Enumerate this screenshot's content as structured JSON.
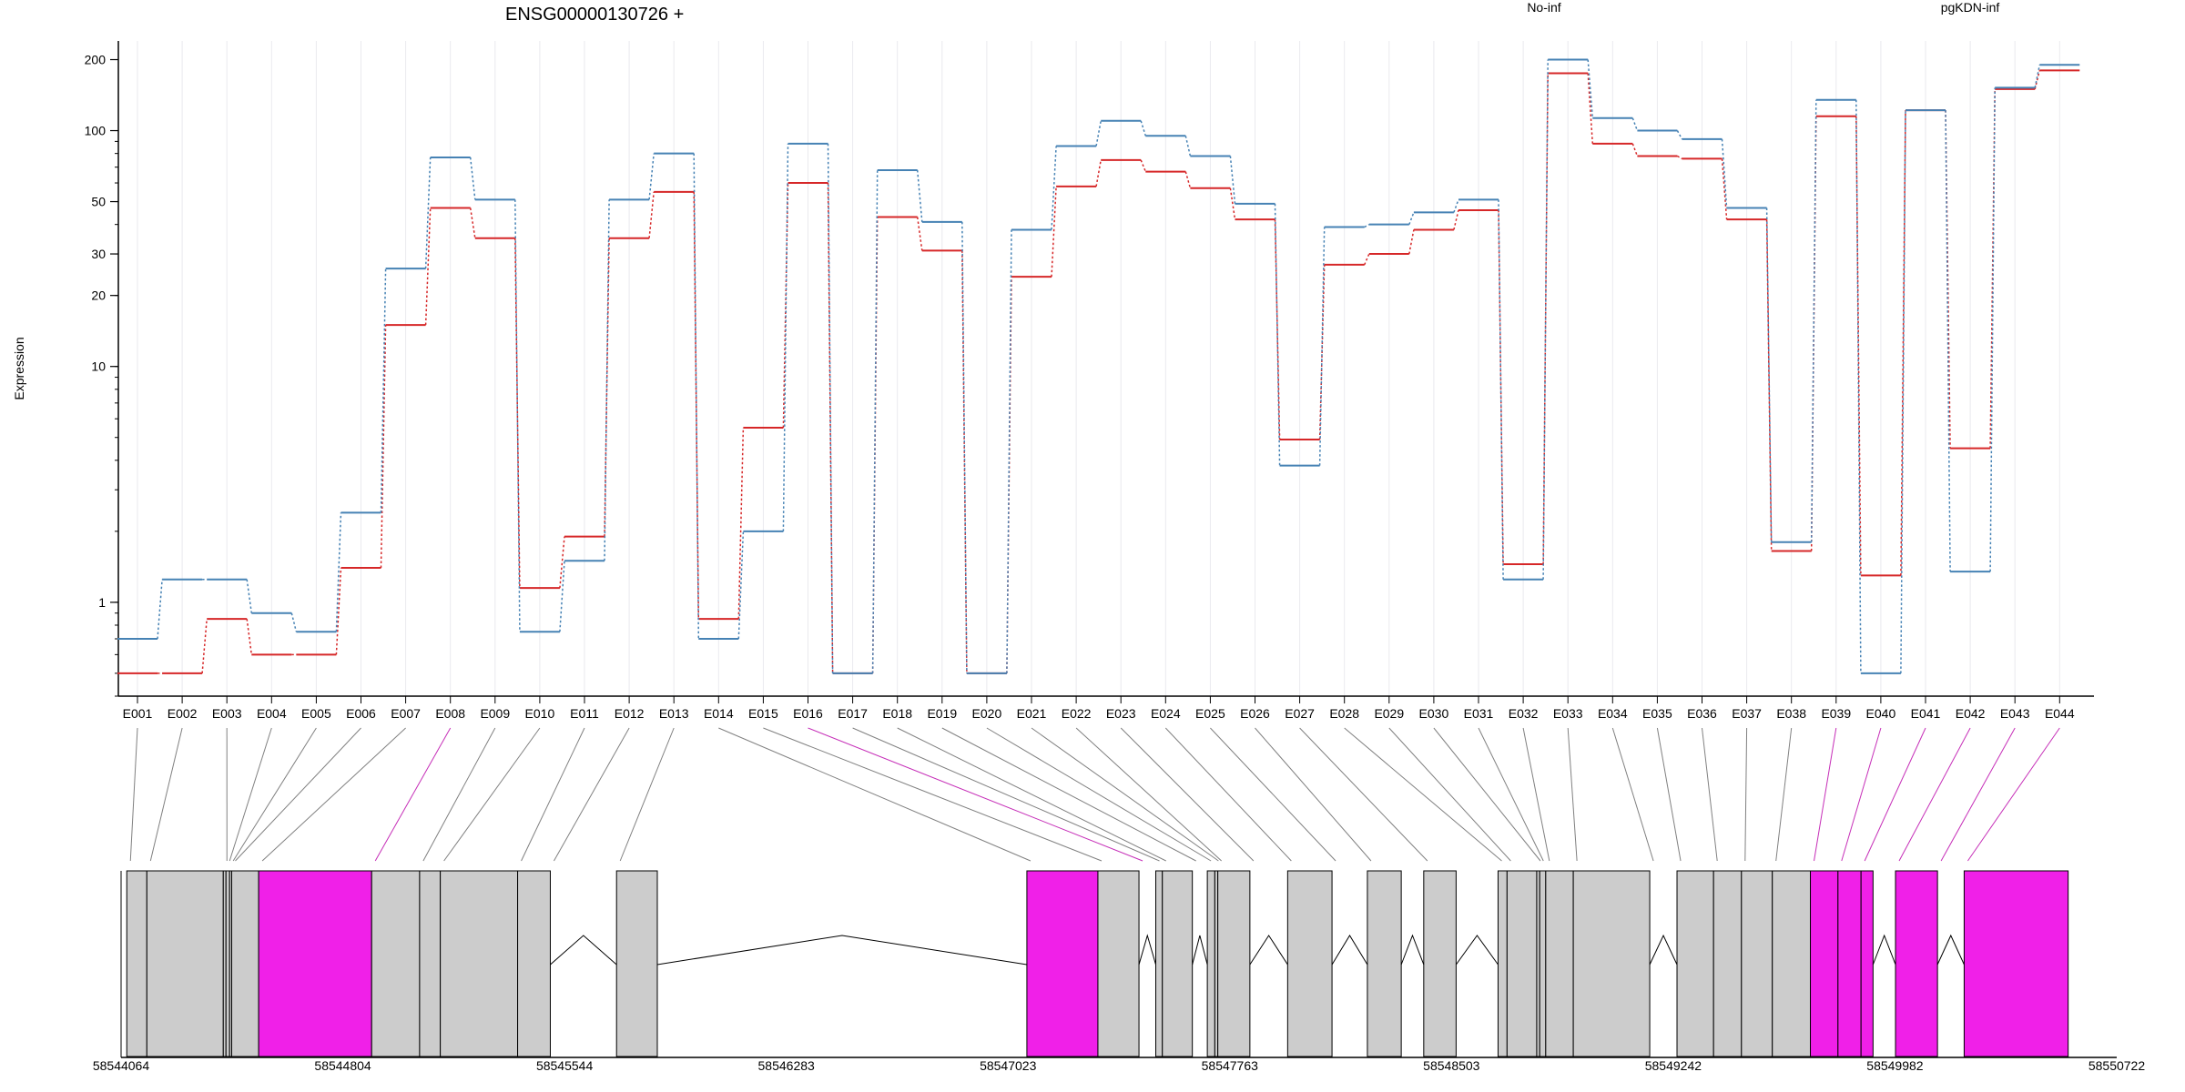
{
  "chart_data": {
    "type": "line",
    "title": "ENSG00000130726 +",
    "ylabel": "Expression",
    "xlabel": "",
    "yscale": "log",
    "ylim": [
      0.4,
      240
    ],
    "yticks": [
      {
        "value": 1,
        "label": "1"
      },
      {
        "value": 10,
        "label": "10"
      },
      {
        "value": 20,
        "label": "20"
      },
      {
        "value": 30,
        "label": "30"
      },
      {
        "value": 50,
        "label": "50"
      },
      {
        "value": 100,
        "label": "100"
      },
      {
        "value": 200,
        "label": "200"
      }
    ],
    "grid": "vertical",
    "categories": [
      "E001",
      "E002",
      "E003",
      "E004",
      "E005",
      "E006",
      "E007",
      "E008",
      "E009",
      "E010",
      "E011",
      "E012",
      "E013",
      "E014",
      "E015",
      "E016",
      "E017",
      "E018",
      "E019",
      "E020",
      "E021",
      "E022",
      "E023",
      "E024",
      "E025",
      "E026",
      "E027",
      "E028",
      "E029",
      "E030",
      "E031",
      "E032",
      "E033",
      "E034",
      "E035",
      "E036",
      "E037",
      "E038",
      "E039",
      "E040",
      "E041",
      "E042",
      "E043",
      "E044"
    ],
    "legend_placement": "top",
    "series": [
      {
        "name": "No-inf",
        "color": "#d62728",
        "values": [
          0.5,
          0.5,
          0.85,
          0.6,
          0.6,
          1.4,
          15,
          47,
          35,
          1.15,
          1.9,
          35,
          55,
          0.85,
          5.5,
          60,
          0.5,
          43,
          31,
          0.5,
          24,
          58,
          75,
          67,
          57,
          42,
          4.9,
          27,
          30,
          38,
          46,
          1.45,
          175,
          88,
          78,
          76,
          42,
          1.65,
          115,
          1.3,
          122,
          4.5,
          150,
          180
        ]
      },
      {
        "name": "pgKDN-inf",
        "color": "#4682b4",
        "values": [
          0.7,
          1.25,
          1.25,
          0.9,
          0.75,
          2.4,
          26,
          77,
          51,
          0.75,
          1.5,
          51,
          80,
          0.7,
          2.0,
          88,
          0.5,
          68,
          41,
          0.5,
          38,
          86,
          110,
          95,
          78,
          49,
          3.8,
          39,
          40,
          45,
          51,
          1.25,
          200,
          113,
          100,
          92,
          47,
          1.8,
          135,
          0.5,
          122,
          1.35,
          152,
          190
        ]
      }
    ],
    "gene_model": {
      "coord_labels": [
        "58544064",
        "58544804",
        "58545544",
        "58546283",
        "58547023",
        "58547763",
        "58548503",
        "58549242",
        "58549982",
        "58550722"
      ],
      "start": 58544064,
      "end": 58550722,
      "exon_colors": {
        "normal": "#cccccc",
        "highlighted": "#f020e8"
      },
      "exons": [
        {
          "start": 58544083,
          "end": 58544150,
          "highlight": false
        },
        {
          "start": 58544150,
          "end": 58544405,
          "highlight": false
        },
        {
          "start": 58544405,
          "end": 58544414,
          "highlight": false
        },
        {
          "start": 58544414,
          "end": 58544426,
          "highlight": false
        },
        {
          "start": 58544426,
          "end": 58544433,
          "highlight": false
        },
        {
          "start": 58544433,
          "end": 58544523,
          "highlight": false
        },
        {
          "start": 58544523,
          "end": 58544900,
          "highlight": true
        },
        {
          "start": 58544900,
          "end": 58545060,
          "highlight": false
        },
        {
          "start": 58545060,
          "end": 58545129,
          "highlight": false
        },
        {
          "start": 58545129,
          "end": 58545387,
          "highlight": false
        },
        {
          "start": 58545387,
          "end": 58545496,
          "highlight": false
        },
        {
          "start": 58545717,
          "end": 58545853,
          "highlight": false
        },
        {
          "start": 58547086,
          "end": 58547323,
          "highlight": true
        },
        {
          "start": 58547323,
          "end": 58547460,
          "highlight": false
        },
        {
          "start": 58547516,
          "end": 58547538,
          "highlight": false
        },
        {
          "start": 58547538,
          "end": 58547638,
          "highlight": false
        },
        {
          "start": 58547688,
          "end": 58547713,
          "highlight": false
        },
        {
          "start": 58547713,
          "end": 58547723,
          "highlight": false
        },
        {
          "start": 58547723,
          "end": 58547830,
          "highlight": false
        },
        {
          "start": 58547956,
          "end": 58548104,
          "highlight": false
        },
        {
          "start": 58548222,
          "end": 58548335,
          "highlight": false
        },
        {
          "start": 58548410,
          "end": 58548518,
          "highlight": false
        },
        {
          "start": 58548658,
          "end": 58548688,
          "highlight": false
        },
        {
          "start": 58548688,
          "end": 58548787,
          "highlight": false
        },
        {
          "start": 58548787,
          "end": 58548797,
          "highlight": false
        },
        {
          "start": 58548797,
          "end": 58548817,
          "highlight": false
        },
        {
          "start": 58548817,
          "end": 58548909,
          "highlight": false
        },
        {
          "start": 58548909,
          "end": 58549164,
          "highlight": false
        },
        {
          "start": 58549255,
          "end": 58549377,
          "highlight": false
        },
        {
          "start": 58549377,
          "end": 58549470,
          "highlight": false
        },
        {
          "start": 58549470,
          "end": 58549573,
          "highlight": false
        },
        {
          "start": 58549573,
          "end": 58549700,
          "highlight": false
        },
        {
          "start": 58549700,
          "end": 58549792,
          "highlight": true
        },
        {
          "start": 58549792,
          "end": 58549869,
          "highlight": true
        },
        {
          "start": 58549869,
          "end": 58549909,
          "highlight": true
        },
        {
          "start": 58549984,
          "end": 58550124,
          "highlight": true
        },
        {
          "start": 58550213,
          "end": 58550560,
          "highlight": true
        }
      ]
    }
  }
}
